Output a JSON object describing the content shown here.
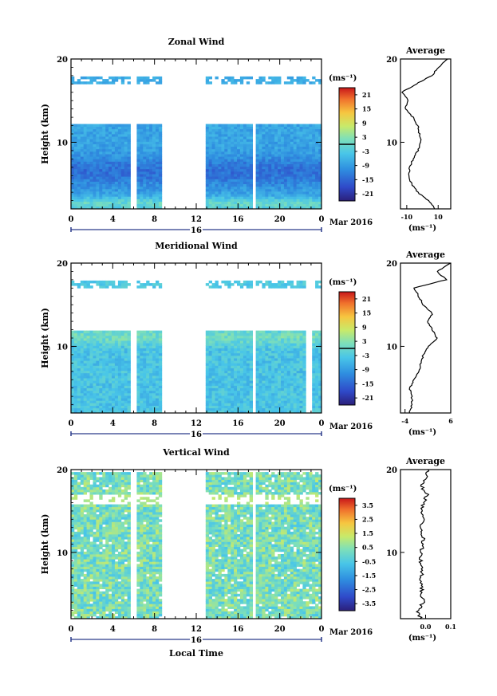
{
  "chart_data": [
    {
      "type": "heatmap",
      "title": "Zonal Wind",
      "ylabel": "Height (km)",
      "xlabel": "",
      "ylim": [
        2,
        20
      ],
      "xlim": [
        0,
        24
      ],
      "x_ticks": [
        "0",
        "4",
        "8",
        "12",
        "16",
        "20",
        "0"
      ],
      "y_ticks": [
        "10",
        "20"
      ],
      "day_label": "16",
      "date_label": "Mar 2016",
      "colorbar": {
        "unit": "(ms⁻¹)",
        "ticks": [
          "21",
          "15",
          "9",
          "3",
          "-3",
          "-9",
          "-15",
          "-21"
        ],
        "range": [
          -24,
          24
        ]
      },
      "data_gaps_local_time": [
        [
          5.8,
          6.3
        ],
        [
          8.6,
          12.9
        ],
        [
          17.4,
          17.8
        ]
      ],
      "data_top_km": 17.6,
      "profile": {
        "title": "Average",
        "xlabel": "(ms⁻¹)",
        "x_ticks": [
          "-10",
          "10"
        ],
        "xlim": [
          -14,
          18
        ],
        "heights": [
          2,
          3,
          4,
          5,
          6,
          7,
          8,
          9,
          10,
          11,
          12,
          13,
          14,
          15,
          16,
          17,
          18,
          19,
          20
        ],
        "values": [
          8,
          4,
          -3,
          -7,
          -9,
          -8,
          -6,
          -3,
          -1,
          -2,
          -3,
          -6,
          -11,
          -9,
          -13,
          -4,
          6,
          10,
          16
        ]
      }
    },
    {
      "type": "heatmap",
      "title": "Meridional Wind",
      "ylabel": "Height (km)",
      "xlabel": "",
      "ylim": [
        2,
        20
      ],
      "xlim": [
        0,
        24
      ],
      "x_ticks": [
        "0",
        "4",
        "8",
        "12",
        "16",
        "20",
        "0"
      ],
      "y_ticks": [
        "10",
        "20"
      ],
      "day_label": "16",
      "date_label": "Mar 2016",
      "colorbar": {
        "unit": "(ms⁻¹)",
        "ticks": [
          "21",
          "15",
          "9",
          "3",
          "-3",
          "-9",
          "-15",
          "-21"
        ],
        "range": [
          -24,
          24
        ]
      },
      "data_gaps_local_time": [
        [
          5.8,
          6.3
        ],
        [
          8.6,
          12.9
        ],
        [
          17.4,
          17.8
        ],
        [
          22.6,
          23.0
        ]
      ],
      "data_top_km": 17.6,
      "profile": {
        "title": "Average",
        "xlabel": "(ms⁻¹)",
        "x_ticks": [
          "-4",
          "6"
        ],
        "xlim": [
          -5,
          6
        ],
        "heights": [
          2,
          3,
          4,
          5,
          6,
          7,
          8,
          9,
          10,
          11,
          12,
          13,
          14,
          15,
          16,
          17,
          18,
          19,
          20
        ],
        "values": [
          -3,
          -2.5,
          -2.5,
          -3,
          -2,
          -1,
          -0.5,
          0,
          1,
          3,
          2,
          1,
          2,
          0,
          -1,
          -2,
          5,
          3,
          6
        ]
      }
    },
    {
      "type": "heatmap",
      "title": "Vertical Wind",
      "ylabel": "Height (km)",
      "xlabel": "Local Time",
      "ylim": [
        2,
        20
      ],
      "xlim": [
        0,
        24
      ],
      "x_ticks": [
        "0",
        "4",
        "8",
        "12",
        "16",
        "20",
        "0"
      ],
      "y_ticks": [
        "10",
        "20"
      ],
      "day_label": "16",
      "date_label": "Mar 2016",
      "colorbar": {
        "unit": "(ms⁻¹)",
        "ticks": [
          "3.5",
          "2.5",
          "1.5",
          "0.5",
          "-0.5",
          "-1.5",
          "-2.5",
          "-3.5"
        ],
        "range": [
          -4,
          4
        ]
      },
      "data_gaps_local_time": [
        [
          5.8,
          6.3
        ],
        [
          8.6,
          12.9
        ],
        [
          17.4,
          17.8
        ]
      ],
      "data_top_km": 19.8,
      "profile": {
        "title": "Average",
        "xlabel": "(ms⁻¹)",
        "x_ticks": [
          "0.0",
          "0.1"
        ],
        "xlim": [
          -0.1,
          0.1
        ],
        "heights": [
          2,
          3,
          4,
          5,
          6,
          7,
          8,
          9,
          10,
          11,
          12,
          13,
          14,
          15,
          16,
          17,
          18,
          19,
          20
        ],
        "values": [
          -0.02,
          -0.03,
          -0.01,
          -0.02,
          -0.01,
          -0.02,
          -0.01,
          -0.02,
          -0.02,
          -0.01,
          -0.01,
          -0.02,
          -0.01,
          -0.02,
          -0.01,
          0.01,
          -0.02,
          0.0,
          0.01
        ]
      }
    }
  ]
}
